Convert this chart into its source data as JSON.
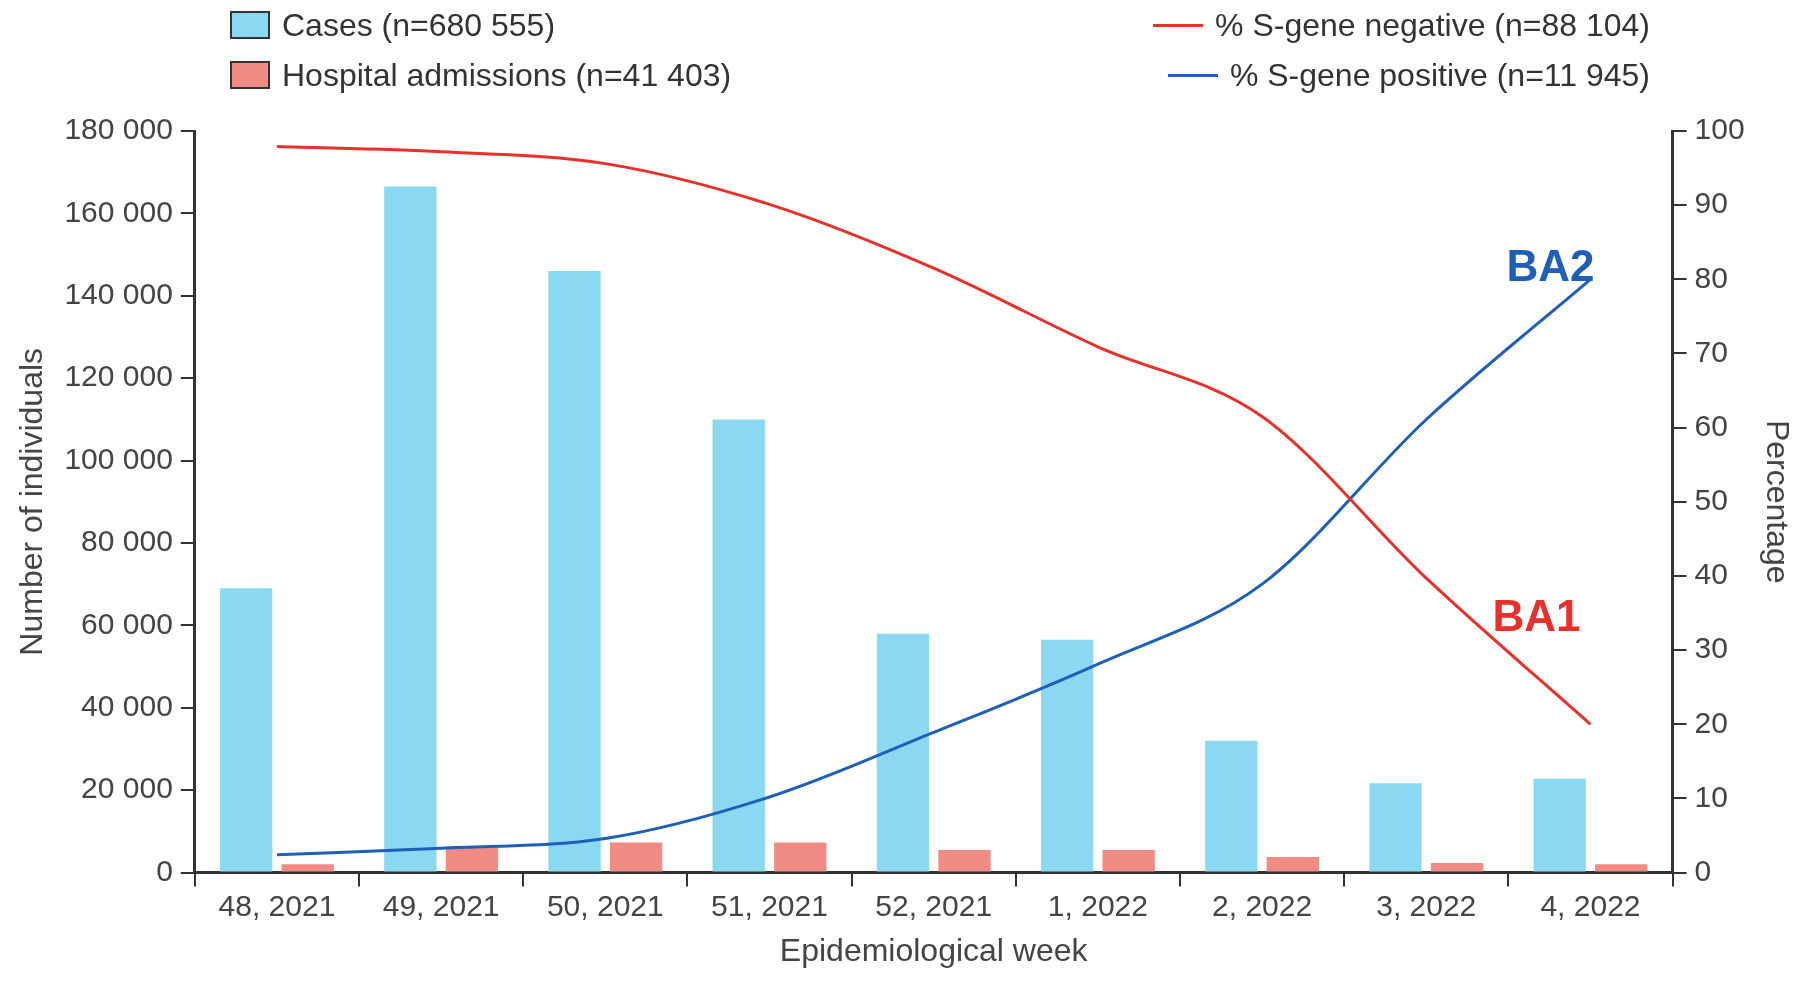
{
  "chart_data": {
    "type": "bar",
    "categories": [
      "48, 2021",
      "49, 2021",
      "50, 2021",
      "51, 2021",
      "52, 2021",
      "1, 2022",
      "2, 2022",
      "3, 2022",
      "4, 2022"
    ],
    "xlabel": "Epidemiological week",
    "ylabel": "Number of individuals",
    "y2label": "Percentage",
    "series": [
      {
        "name": "Cases (n=680 555)",
        "color": "#8ad8f2",
        "values": [
          69000,
          166500,
          146000,
          110000,
          58000,
          56500,
          32000,
          21700,
          22800
        ]
      },
      {
        "name": "Hospital admissions (n=41 403)",
        "color": "#f08c84",
        "values": [
          2000,
          6000,
          7300,
          7300,
          5500,
          5500,
          3800,
          2300,
          2000
        ]
      },
      {
        "name": "% S-gene negative (n=88 104)",
        "type": "line",
        "axis": "y2",
        "color": "#e8302a",
        "values": [
          97.9,
          97.2,
          95.6,
          90.1,
          81.5,
          70.9,
          61.5,
          39.7,
          20
        ]
      },
      {
        "name": "% S-gene positive (n=11 945)",
        "type": "line",
        "axis": "y2",
        "color": "#1f5fb8",
        "values": [
          2.4,
          3.3,
          4.6,
          10.2,
          18.9,
          28.1,
          38.9,
          61.1,
          80
        ]
      }
    ],
    "ylim": [
      0,
      180000
    ],
    "yticks": [
      0,
      {
        "value": 20000,
        "label": "20 000"
      },
      {
        "value": 40000,
        "label": "40 000"
      },
      {
        "value": 60000,
        "label": "60 000"
      },
      {
        "value": 80000,
        "label": "80 000"
      },
      {
        "value": 100000,
        "label": "100 000"
      },
      {
        "value": 120000,
        "label": "120 000"
      },
      {
        "value": 140000,
        "label": "140 000"
      },
      {
        "value": 160000,
        "label": "160 000"
      },
      {
        "value": 180000,
        "label": "180 000"
      }
    ],
    "y2lim": [
      0,
      100
    ],
    "y2ticks": [
      0,
      10,
      20,
      30,
      40,
      50,
      60,
      70,
      80,
      90,
      100
    ],
    "annotations": [
      "BA1",
      "BA2"
    ],
    "grid": false,
    "legend": "top",
    "marker": "none",
    "line_style": "solid"
  }
}
